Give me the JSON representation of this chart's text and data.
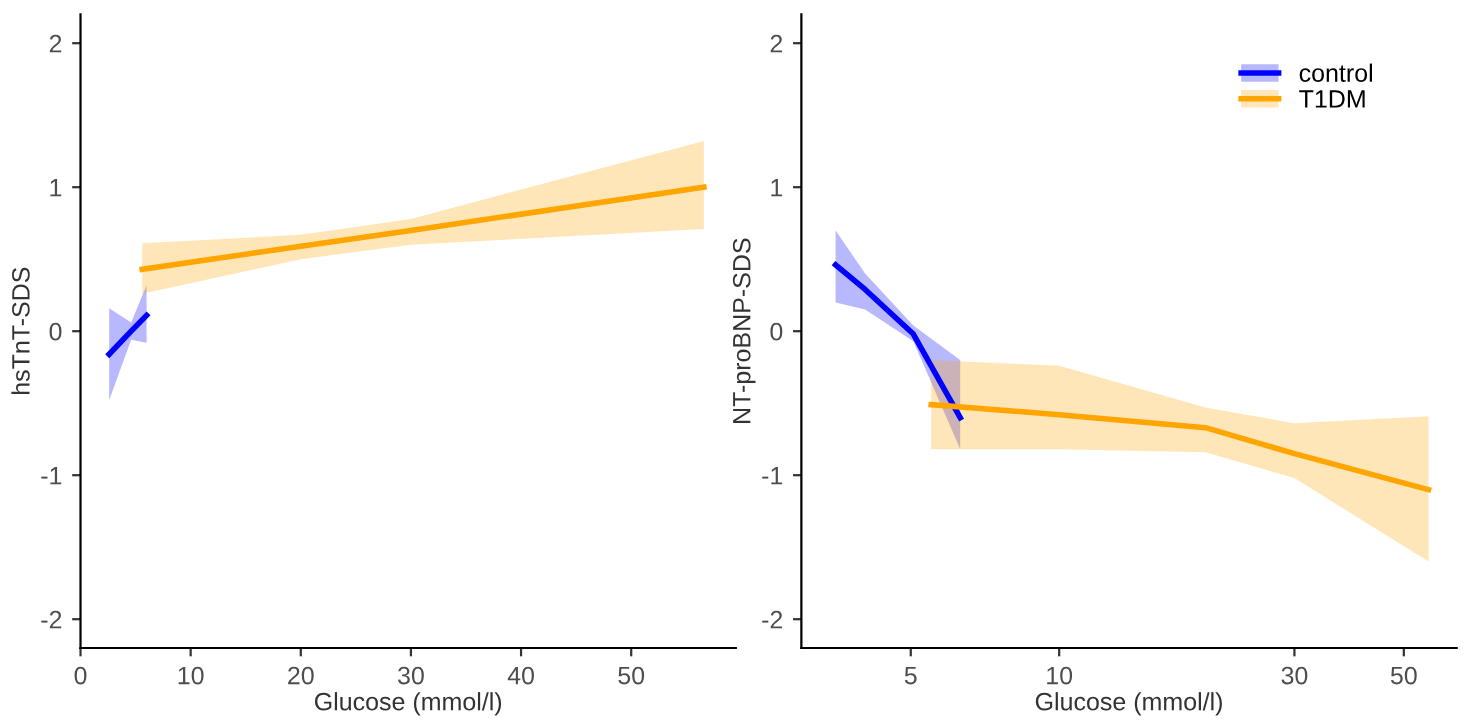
{
  "chart_data": [
    {
      "type": "line",
      "xlabel": "Glucose (mmol/l)",
      "ylabel": "hsTnT-SDS",
      "xlim": [
        0,
        59.5
      ],
      "ylim": [
        -2.2,
        2.2
      ],
      "xticks": [
        0,
        10,
        20,
        30,
        40,
        50
      ],
      "yticks": [
        -2,
        -1,
        0,
        1,
        2
      ],
      "grid": false,
      "legend": false,
      "series": [
        {
          "color": "#0000ff",
          "x": [
            2.6,
            4.6,
            6.0
          ],
          "values": [
            -0.16,
            0.0,
            0.11
          ],
          "lower": [
            -0.48,
            -0.06,
            -0.08
          ],
          "upper": [
            0.16,
            0.06,
            0.32
          ]
        },
        {
          "color": "#ffa500",
          "x": [
            5.6,
            20,
            30,
            56.6
          ],
          "values": [
            0.43,
            0.59,
            0.7,
            1.0
          ],
          "lower": [
            0.26,
            0.5,
            0.6,
            0.71
          ],
          "upper": [
            0.61,
            0.67,
            0.78,
            1.32
          ]
        }
      ]
    },
    {
      "type": "line",
      "xlabel": "Glucose (mmol/l)",
      "ylabel": "NT-proBNP-SDS",
      "log": "x",
      "xlim": [
        3.0,
        64
      ],
      "ylim": [
        -2.2,
        2.2
      ],
      "xticks": [
        5,
        10,
        30,
        50
      ],
      "yticks": [
        -2,
        -1,
        0,
        1,
        2
      ],
      "grid": false,
      "legend": "top right",
      "series": [
        {
          "name": "control",
          "color": "#0000ff",
          "x": [
            3.52,
            4.04,
            5.06,
            6.3
          ],
          "values": [
            0.46,
            0.29,
            -0.02,
            -0.6
          ],
          "lower": [
            0.2,
            0.15,
            -0.07,
            -0.82
          ],
          "upper": [
            0.7,
            0.4,
            0.04,
            -0.2
          ]
        },
        {
          "name": "T1DM",
          "color": "#ffa500",
          "x": [
            5.5,
            10,
            19.8,
            30,
            56.1
          ],
          "values": [
            -0.51,
            -0.58,
            -0.67,
            -0.85,
            -1.1
          ],
          "lower": [
            -0.82,
            -0.82,
            -0.84,
            -1.02,
            -1.6
          ],
          "upper": [
            -0.2,
            -0.24,
            -0.53,
            -0.64,
            -0.59
          ]
        }
      ]
    }
  ]
}
